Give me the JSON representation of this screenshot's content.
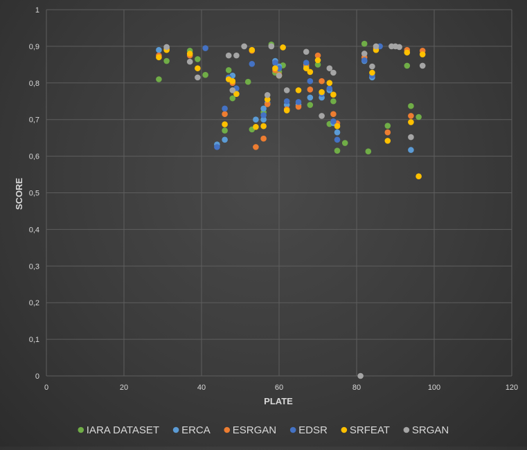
{
  "chart_data": {
    "type": "scatter",
    "title": "",
    "xlabel": "PLATE",
    "ylabel": "SCORE",
    "xlim": [
      0,
      120
    ],
    "ylim": [
      0,
      1
    ],
    "x_ticks": [
      0,
      20,
      40,
      60,
      80,
      100,
      120
    ],
    "y_ticks": [
      0,
      0.1,
      0.2,
      0.3,
      0.4,
      0.5,
      0.6,
      0.7,
      0.8,
      0.9,
      1
    ],
    "y_tick_labels": [
      "0",
      "0,1",
      "0,2",
      "0,3",
      "0,4",
      "0,5",
      "0,6",
      "0,7",
      "0,8",
      "0,9",
      "1"
    ],
    "x_tick_labels": [
      "0",
      "20",
      "40",
      "60",
      "80",
      "100",
      "120"
    ],
    "grid": true,
    "legend_position": "bottom",
    "series": [
      {
        "name": "IARA DATASET",
        "color": "#70ad47",
        "points": [
          [
            29,
            0.81
          ],
          [
            31,
            0.86
          ],
          [
            37,
            0.888
          ],
          [
            39,
            0.865
          ],
          [
            41,
            0.822
          ],
          [
            47,
            0.835
          ],
          [
            48,
            0.758
          ],
          [
            52,
            0.803
          ],
          [
            53,
            0.673
          ],
          [
            56,
            0.72
          ],
          [
            58,
            0.905
          ],
          [
            59,
            0.828
          ],
          [
            61,
            0.848
          ],
          [
            68,
            0.74
          ],
          [
            70,
            0.85
          ],
          [
            73,
            0.688
          ],
          [
            74,
            0.75
          ],
          [
            75,
            0.615
          ],
          [
            77,
            0.636
          ],
          [
            82,
            0.907
          ],
          [
            83,
            0.613
          ],
          [
            88,
            0.683
          ],
          [
            93,
            0.847
          ],
          [
            94,
            0.737
          ],
          [
            96,
            0.707
          ],
          [
            46,
            0.67
          ],
          [
            60,
            0.83
          ]
        ]
      },
      {
        "name": "ERCA",
        "color": "#5b9bd5",
        "points": [
          [
            29,
            0.89
          ],
          [
            31,
            0.895
          ],
          [
            44,
            0.632
          ],
          [
            46,
            0.645
          ],
          [
            48,
            0.82
          ],
          [
            49,
            0.77
          ],
          [
            54,
            0.7
          ],
          [
            56,
            0.7
          ],
          [
            57,
            0.745
          ],
          [
            59,
            0.86
          ],
          [
            60,
            0.845
          ],
          [
            62,
            0.74
          ],
          [
            65,
            0.74
          ],
          [
            67,
            0.845
          ],
          [
            68,
            0.76
          ],
          [
            71,
            0.76
          ],
          [
            73,
            0.78
          ],
          [
            74,
            0.69
          ],
          [
            75,
            0.665
          ],
          [
            82,
            0.86
          ],
          [
            84,
            0.815
          ],
          [
            94,
            0.617
          ],
          [
            56,
            0.73
          ]
        ]
      },
      {
        "name": "ESRGAN",
        "color": "#ed7d31",
        "points": [
          [
            29,
            0.875
          ],
          [
            31,
            0.892
          ],
          [
            37,
            0.875
          ],
          [
            46,
            0.715
          ],
          [
            48,
            0.8
          ],
          [
            53,
            0.888
          ],
          [
            54,
            0.625
          ],
          [
            56,
            0.648
          ],
          [
            57,
            0.742
          ],
          [
            59,
            0.835
          ],
          [
            60,
            0.822
          ],
          [
            62,
            0.728
          ],
          [
            65,
            0.735
          ],
          [
            67,
            0.85
          ],
          [
            68,
            0.782
          ],
          [
            70,
            0.875
          ],
          [
            71,
            0.805
          ],
          [
            74,
            0.715
          ],
          [
            75,
            0.69
          ],
          [
            82,
            0.87
          ],
          [
            85,
            0.895
          ],
          [
            88,
            0.665
          ],
          [
            93,
            0.89
          ],
          [
            94,
            0.71
          ],
          [
            97,
            0.888
          ]
        ]
      },
      {
        "name": "EDSR",
        "color": "#4472c4",
        "points": [
          [
            41,
            0.895
          ],
          [
            44,
            0.625
          ],
          [
            46,
            0.73
          ],
          [
            47,
            0.815
          ],
          [
            49,
            0.785
          ],
          [
            53,
            0.852
          ],
          [
            56,
            0.712
          ],
          [
            59,
            0.855
          ],
          [
            60,
            0.84
          ],
          [
            62,
            0.75
          ],
          [
            65,
            0.748
          ],
          [
            67,
            0.855
          ],
          [
            68,
            0.805
          ],
          [
            71,
            0.77
          ],
          [
            73,
            0.785
          ],
          [
            74,
            0.695
          ],
          [
            75,
            0.645
          ],
          [
            82,
            0.862
          ],
          [
            84,
            0.82
          ],
          [
            86,
            0.9
          ]
        ]
      },
      {
        "name": "SRFEAT",
        "color": "#ffc000",
        "points": [
          [
            29,
            0.87
          ],
          [
            31,
            0.89
          ],
          [
            37,
            0.88
          ],
          [
            39,
            0.84
          ],
          [
            46,
            0.687
          ],
          [
            47,
            0.81
          ],
          [
            48,
            0.805
          ],
          [
            49,
            0.77
          ],
          [
            53,
            0.89
          ],
          [
            54,
            0.68
          ],
          [
            56,
            0.682
          ],
          [
            57,
            0.755
          ],
          [
            59,
            0.84
          ],
          [
            60,
            0.82
          ],
          [
            61,
            0.897
          ],
          [
            62,
            0.725
          ],
          [
            65,
            0.78
          ],
          [
            67,
            0.84
          ],
          [
            68,
            0.83
          ],
          [
            70,
            0.862
          ],
          [
            71,
            0.775
          ],
          [
            73,
            0.8
          ],
          [
            74,
            0.768
          ],
          [
            75,
            0.682
          ],
          [
            84,
            0.828
          ],
          [
            85,
            0.89
          ],
          [
            88,
            0.642
          ],
          [
            93,
            0.883
          ],
          [
            94,
            0.693
          ],
          [
            96,
            0.545
          ],
          [
            97,
            0.878
          ]
        ]
      },
      {
        "name": "SRGAN",
        "color": "#a5a5a5",
        "points": [
          [
            31,
            0.898
          ],
          [
            37,
            0.858
          ],
          [
            39,
            0.815
          ],
          [
            47,
            0.875
          ],
          [
            48,
            0.78
          ],
          [
            49,
            0.875
          ],
          [
            51,
            0.9
          ],
          [
            57,
            0.767
          ],
          [
            58,
            0.9
          ],
          [
            60,
            0.82
          ],
          [
            62,
            0.78
          ],
          [
            67,
            0.885
          ],
          [
            71,
            0.71
          ],
          [
            73,
            0.84
          ],
          [
            74,
            0.828
          ],
          [
            82,
            0.88
          ],
          [
            84,
            0.845
          ],
          [
            85,
            0.9
          ],
          [
            89,
            0.9
          ],
          [
            90,
            0.9
          ],
          [
            91,
            0.898
          ],
          [
            94,
            0.652
          ],
          [
            97,
            0.847
          ],
          [
            81,
            0.0
          ]
        ]
      }
    ]
  }
}
